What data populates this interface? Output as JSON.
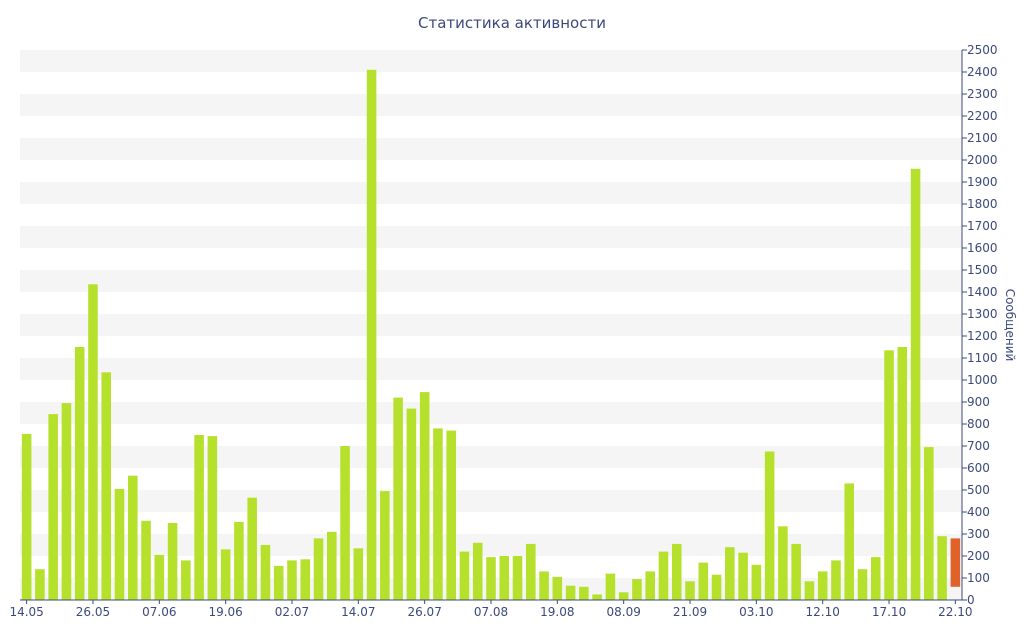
{
  "chart_data": {
    "type": "bar",
    "title": "Статистика активности",
    "ylabel": "Сообщений",
    "xlabel": "",
    "ylim": [
      0,
      2500
    ],
    "y_ticks": [
      0,
      100,
      200,
      300,
      400,
      500,
      600,
      700,
      800,
      900,
      1000,
      1100,
      1200,
      1300,
      1400,
      1500,
      1600,
      1700,
      1800,
      1900,
      2000,
      2100,
      2200,
      2300,
      2400,
      2500
    ],
    "x_tick_labels": [
      {
        "label": "14.05",
        "index": 0
      },
      {
        "label": "26.05",
        "index": 5
      },
      {
        "label": "07.06",
        "index": 10
      },
      {
        "label": "19.06",
        "index": 15
      },
      {
        "label": "02.07",
        "index": 20
      },
      {
        "label": "14.07",
        "index": 25
      },
      {
        "label": "26.07",
        "index": 30
      },
      {
        "label": "07.08",
        "index": 35
      },
      {
        "label": "19.08",
        "index": 40
      },
      {
        "label": "08.09",
        "index": 45
      },
      {
        "label": "21.09",
        "index": 50
      },
      {
        "label": "03.10",
        "index": 55
      },
      {
        "label": "12.10",
        "index": 60
      },
      {
        "label": "17.10",
        "index": 65
      },
      {
        "label": "22.10",
        "index": 70
      }
    ],
    "values": [
      755,
      140,
      845,
      895,
      1150,
      1435,
      1035,
      505,
      565,
      360,
      205,
      350,
      180,
      750,
      745,
      230,
      355,
      465,
      250,
      155,
      180,
      185,
      280,
      310,
      700,
      235,
      2410,
      495,
      920,
      870,
      945,
      780,
      770,
      220,
      260,
      195,
      200,
      200,
      255,
      130,
      105,
      65,
      60,
      25,
      120,
      35,
      95,
      130,
      220,
      255,
      85,
      170,
      115,
      240,
      215,
      160,
      675,
      335,
      255,
      85,
      130,
      180,
      530,
      140,
      195,
      1135,
      1150,
      1960,
      695,
      290,
      280
    ],
    "current_bar": {
      "index": 70,
      "value": 280,
      "base": 60
    },
    "colors": {
      "bar": "#b5e02c",
      "current": "#e0622a",
      "text": "#3b4a7a",
      "band": "#f5f5f5",
      "axis": "#3b4a7a"
    },
    "grid": "alternating-bands"
  }
}
